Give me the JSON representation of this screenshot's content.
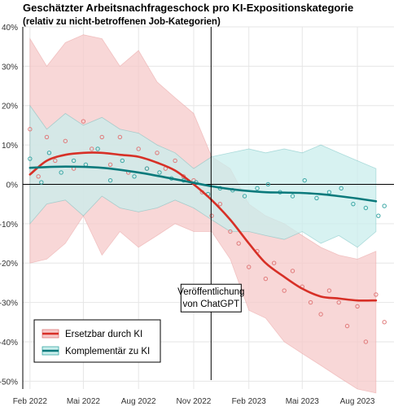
{
  "colors": {
    "red_line": "#d73027",
    "red_band": "#f6c9c9",
    "red_points": "#e07a7a",
    "teal_line": "#0b7a7c",
    "teal_band": "#c9eeec",
    "teal_points": "#3aa7a5",
    "grid": "#e6e6e6",
    "zero_line": "#000000"
  },
  "chart_data": {
    "type": "line",
    "title": "Geschätzter Arbeitsnachfrageschock pro KI-Expositionskategorie",
    "subtitle": "(relativ zu nicht-betroffenen Job-Kategorien)",
    "xlabel": "",
    "ylabel": "",
    "x_range": [
      "2022-01-20",
      "2023-10-01"
    ],
    "ylim": [
      -0.52,
      0.4
    ],
    "y_ticks": [
      {
        "value": 0.4,
        "label": "40%"
      },
      {
        "value": 0.3,
        "label": "30%"
      },
      {
        "value": 0.2,
        "label": "20%"
      },
      {
        "value": 0.1,
        "label": "10%"
      },
      {
        "value": 0.0,
        "label": "0%"
      },
      {
        "value": -0.1,
        "label": "-10%"
      },
      {
        "value": -0.2,
        "label": "-20%"
      },
      {
        "value": -0.3,
        "label": "-30%"
      },
      {
        "value": -0.4,
        "label": "-40%"
      },
      {
        "value": -0.5,
        "label": "-50%"
      }
    ],
    "x_ticks": [
      {
        "date": "2022-02-01",
        "label": "Feb 2022"
      },
      {
        "date": "2022-05-01",
        "label": "Mai 2022"
      },
      {
        "date": "2022-08-01",
        "label": "Aug 2022"
      },
      {
        "date": "2022-11-01",
        "label": "Nov 2022"
      },
      {
        "date": "2023-02-01",
        "label": "Feb 2023"
      },
      {
        "date": "2023-05-01",
        "label": "Mai 2023"
      },
      {
        "date": "2023-08-01",
        "label": "Aug 2023"
      }
    ],
    "grid": true,
    "annotation": {
      "date": "2022-11-30",
      "label_lines": [
        "Veröffentlichung",
        "von ChatGPT"
      ],
      "label_value": -0.26
    },
    "legend": {
      "placement": "bottom-left"
    },
    "series": [
      {
        "name": "Ersetzbar durch KI",
        "trend": [
          {
            "x": "2022-02-01",
            "y": 0.025
          },
          {
            "x": "2022-03-01",
            "y": 0.06
          },
          {
            "x": "2022-04-01",
            "y": 0.075
          },
          {
            "x": "2022-05-01",
            "y": 0.08
          },
          {
            "x": "2022-06-01",
            "y": 0.08
          },
          {
            "x": "2022-07-01",
            "y": 0.075
          },
          {
            "x": "2022-08-01",
            "y": 0.07
          },
          {
            "x": "2022-09-01",
            "y": 0.055
          },
          {
            "x": "2022-10-01",
            "y": 0.035
          },
          {
            "x": "2022-11-01",
            "y": 0.0
          },
          {
            "x": "2022-12-01",
            "y": -0.04
          },
          {
            "x": "2023-01-01",
            "y": -0.09
          },
          {
            "x": "2023-02-01",
            "y": -0.15
          },
          {
            "x": "2023-03-01",
            "y": -0.2
          },
          {
            "x": "2023-04-01",
            "y": -0.235
          },
          {
            "x": "2023-05-01",
            "y": -0.265
          },
          {
            "x": "2023-06-01",
            "y": -0.285
          },
          {
            "x": "2023-07-01",
            "y": -0.29
          },
          {
            "x": "2023-08-01",
            "y": -0.295
          },
          {
            "x": "2023-09-01",
            "y": -0.295
          }
        ],
        "band": [
          {
            "x": "2022-02-01",
            "lo": -0.2,
            "hi": 0.37
          },
          {
            "x": "2022-03-01",
            "lo": -0.19,
            "hi": 0.3
          },
          {
            "x": "2022-04-01",
            "lo": -0.15,
            "hi": 0.36
          },
          {
            "x": "2022-05-01",
            "lo": -0.08,
            "hi": 0.38
          },
          {
            "x": "2022-06-01",
            "lo": -0.18,
            "hi": 0.37
          },
          {
            "x": "2022-07-01",
            "lo": -0.12,
            "hi": 0.3
          },
          {
            "x": "2022-08-01",
            "lo": -0.16,
            "hi": 0.34
          },
          {
            "x": "2022-09-01",
            "lo": -0.13,
            "hi": 0.26
          },
          {
            "x": "2022-10-01",
            "lo": -0.1,
            "hi": 0.22
          },
          {
            "x": "2022-11-01",
            "lo": -0.12,
            "hi": 0.18
          },
          {
            "x": "2022-12-01",
            "lo": -0.12,
            "hi": 0.07
          },
          {
            "x": "2023-01-01",
            "lo": -0.19,
            "hi": 0.04
          },
          {
            "x": "2023-02-01",
            "lo": -0.32,
            "hi": -0.05
          },
          {
            "x": "2023-03-01",
            "lo": -0.34,
            "hi": -0.08
          },
          {
            "x": "2023-04-01",
            "lo": -0.4,
            "hi": -0.1
          },
          {
            "x": "2023-05-01",
            "lo": -0.43,
            "hi": -0.13
          },
          {
            "x": "2023-06-01",
            "lo": -0.46,
            "hi": -0.16
          },
          {
            "x": "2023-07-01",
            "lo": -0.49,
            "hi": -0.18
          },
          {
            "x": "2023-08-01",
            "lo": -0.52,
            "hi": -0.19
          },
          {
            "x": "2023-09-01",
            "lo": -0.53,
            "hi": -0.17
          }
        ],
        "points": [
          {
            "x": "2022-02-01",
            "y": 0.14
          },
          {
            "x": "2022-02-15",
            "y": 0.02
          },
          {
            "x": "2022-03-01",
            "y": 0.12
          },
          {
            "x": "2022-03-15",
            "y": 0.06
          },
          {
            "x": "2022-04-01",
            "y": 0.11
          },
          {
            "x": "2022-04-15",
            "y": 0.04
          },
          {
            "x": "2022-05-01",
            "y": 0.16
          },
          {
            "x": "2022-05-15",
            "y": 0.09
          },
          {
            "x": "2022-06-01",
            "y": 0.12
          },
          {
            "x": "2022-06-15",
            "y": 0.05
          },
          {
            "x": "2022-07-01",
            "y": 0.12
          },
          {
            "x": "2022-07-15",
            "y": 0.03
          },
          {
            "x": "2022-08-01",
            "y": 0.09
          },
          {
            "x": "2022-08-15",
            "y": 0.04
          },
          {
            "x": "2022-09-01",
            "y": 0.08
          },
          {
            "x": "2022-09-15",
            "y": 0.04
          },
          {
            "x": "2022-10-01",
            "y": 0.06
          },
          {
            "x": "2022-10-15",
            "y": 0.02
          },
          {
            "x": "2022-11-01",
            "y": 0.01
          },
          {
            "x": "2022-11-15",
            "y": -0.02
          },
          {
            "x": "2022-12-01",
            "y": -0.08
          },
          {
            "x": "2022-12-15",
            "y": -0.05
          },
          {
            "x": "2023-01-01",
            "y": -0.12
          },
          {
            "x": "2023-01-15",
            "y": -0.15
          },
          {
            "x": "2023-02-01",
            "y": -0.21
          },
          {
            "x": "2023-02-15",
            "y": -0.17
          },
          {
            "x": "2023-03-01",
            "y": -0.24
          },
          {
            "x": "2023-03-15",
            "y": -0.2
          },
          {
            "x": "2023-04-01",
            "y": -0.27
          },
          {
            "x": "2023-04-15",
            "y": -0.22
          },
          {
            "x": "2023-05-01",
            "y": -0.26
          },
          {
            "x": "2023-05-15",
            "y": -0.3
          },
          {
            "x": "2023-06-01",
            "y": -0.33
          },
          {
            "x": "2023-06-15",
            "y": -0.27
          },
          {
            "x": "2023-07-01",
            "y": -0.3
          },
          {
            "x": "2023-07-15",
            "y": -0.36
          },
          {
            "x": "2023-08-01",
            "y": -0.31
          },
          {
            "x": "2023-08-15",
            "y": -0.4
          },
          {
            "x": "2023-09-01",
            "y": -0.28
          },
          {
            "x": "2023-09-15",
            "y": -0.35
          }
        ]
      },
      {
        "name": "Komplementär zu KI",
        "trend": [
          {
            "x": "2022-02-01",
            "y": 0.042
          },
          {
            "x": "2022-04-01",
            "y": 0.045
          },
          {
            "x": "2022-06-01",
            "y": 0.042
          },
          {
            "x": "2022-08-01",
            "y": 0.03
          },
          {
            "x": "2022-10-01",
            "y": 0.013
          },
          {
            "x": "2022-12-01",
            "y": -0.005
          },
          {
            "x": "2023-01-01",
            "y": -0.012
          },
          {
            "x": "2023-02-01",
            "y": -0.017
          },
          {
            "x": "2023-03-01",
            "y": -0.02
          },
          {
            "x": "2023-04-01",
            "y": -0.021
          },
          {
            "x": "2023-05-01",
            "y": -0.022
          },
          {
            "x": "2023-06-01",
            "y": -0.025
          },
          {
            "x": "2023-07-01",
            "y": -0.03
          },
          {
            "x": "2023-08-01",
            "y": -0.036
          },
          {
            "x": "2023-09-01",
            "y": -0.043
          }
        ],
        "band": [
          {
            "x": "2022-02-01",
            "lo": -0.1,
            "hi": 0.2
          },
          {
            "x": "2022-03-01",
            "lo": -0.05,
            "hi": 0.14
          },
          {
            "x": "2022-04-01",
            "lo": -0.04,
            "hi": 0.18
          },
          {
            "x": "2022-05-01",
            "lo": -0.08,
            "hi": 0.15
          },
          {
            "x": "2022-06-01",
            "lo": -0.03,
            "hi": 0.17
          },
          {
            "x": "2022-07-01",
            "lo": -0.06,
            "hi": 0.14
          },
          {
            "x": "2022-08-01",
            "lo": -0.07,
            "hi": 0.13
          },
          {
            "x": "2022-09-01",
            "lo": -0.06,
            "hi": 0.1
          },
          {
            "x": "2022-10-01",
            "lo": -0.04,
            "hi": 0.08
          },
          {
            "x": "2022-11-01",
            "lo": -0.06,
            "hi": 0.04
          },
          {
            "x": "2022-12-01",
            "lo": -0.09,
            "hi": 0.07
          },
          {
            "x": "2023-01-01",
            "lo": -0.12,
            "hi": 0.08
          },
          {
            "x": "2023-02-01",
            "lo": -0.12,
            "hi": 0.09
          },
          {
            "x": "2023-03-01",
            "lo": -0.13,
            "hi": 0.08
          },
          {
            "x": "2023-04-01",
            "lo": -0.14,
            "hi": 0.09
          },
          {
            "x": "2023-05-01",
            "lo": -0.12,
            "hi": 0.08
          },
          {
            "x": "2023-06-01",
            "lo": -0.15,
            "hi": 0.1
          },
          {
            "x": "2023-07-01",
            "lo": -0.13,
            "hi": 0.08
          },
          {
            "x": "2023-08-01",
            "lo": -0.16,
            "hi": 0.06
          },
          {
            "x": "2023-09-01",
            "lo": -0.12,
            "hi": 0.04
          }
        ],
        "points": [
          {
            "x": "2022-02-01",
            "y": 0.065
          },
          {
            "x": "2022-02-20",
            "y": 0.005
          },
          {
            "x": "2022-03-05",
            "y": 0.08
          },
          {
            "x": "2022-03-25",
            "y": 0.03
          },
          {
            "x": "2022-04-15",
            "y": 0.06
          },
          {
            "x": "2022-05-05",
            "y": 0.05
          },
          {
            "x": "2022-05-25",
            "y": 0.09
          },
          {
            "x": "2022-06-15",
            "y": 0.01
          },
          {
            "x": "2022-07-05",
            "y": 0.06
          },
          {
            "x": "2022-07-25",
            "y": 0.02
          },
          {
            "x": "2022-08-15",
            "y": 0.04
          },
          {
            "x": "2022-09-05",
            "y": 0.03
          },
          {
            "x": "2022-09-25",
            "y": 0.015
          },
          {
            "x": "2022-10-15",
            "y": 0.01
          },
          {
            "x": "2022-11-05",
            "y": 0.005
          },
          {
            "x": "2022-11-25",
            "y": -0.025
          },
          {
            "x": "2022-12-15",
            "y": -0.01
          },
          {
            "x": "2023-01-05",
            "y": -0.015
          },
          {
            "x": "2023-01-25",
            "y": -0.03
          },
          {
            "x": "2023-02-15",
            "y": -0.01
          },
          {
            "x": "2023-03-05",
            "y": 0.0
          },
          {
            "x": "2023-03-25",
            "y": -0.02
          },
          {
            "x": "2023-04-15",
            "y": -0.03
          },
          {
            "x": "2023-05-05",
            "y": 0.01
          },
          {
            "x": "2023-05-25",
            "y": -0.035
          },
          {
            "x": "2023-06-15",
            "y": -0.02
          },
          {
            "x": "2023-07-05",
            "y": -0.01
          },
          {
            "x": "2023-07-25",
            "y": -0.05
          },
          {
            "x": "2023-08-15",
            "y": -0.06
          },
          {
            "x": "2023-09-05",
            "y": -0.08
          },
          {
            "x": "2023-09-15",
            "y": -0.055
          }
        ]
      }
    ]
  }
}
